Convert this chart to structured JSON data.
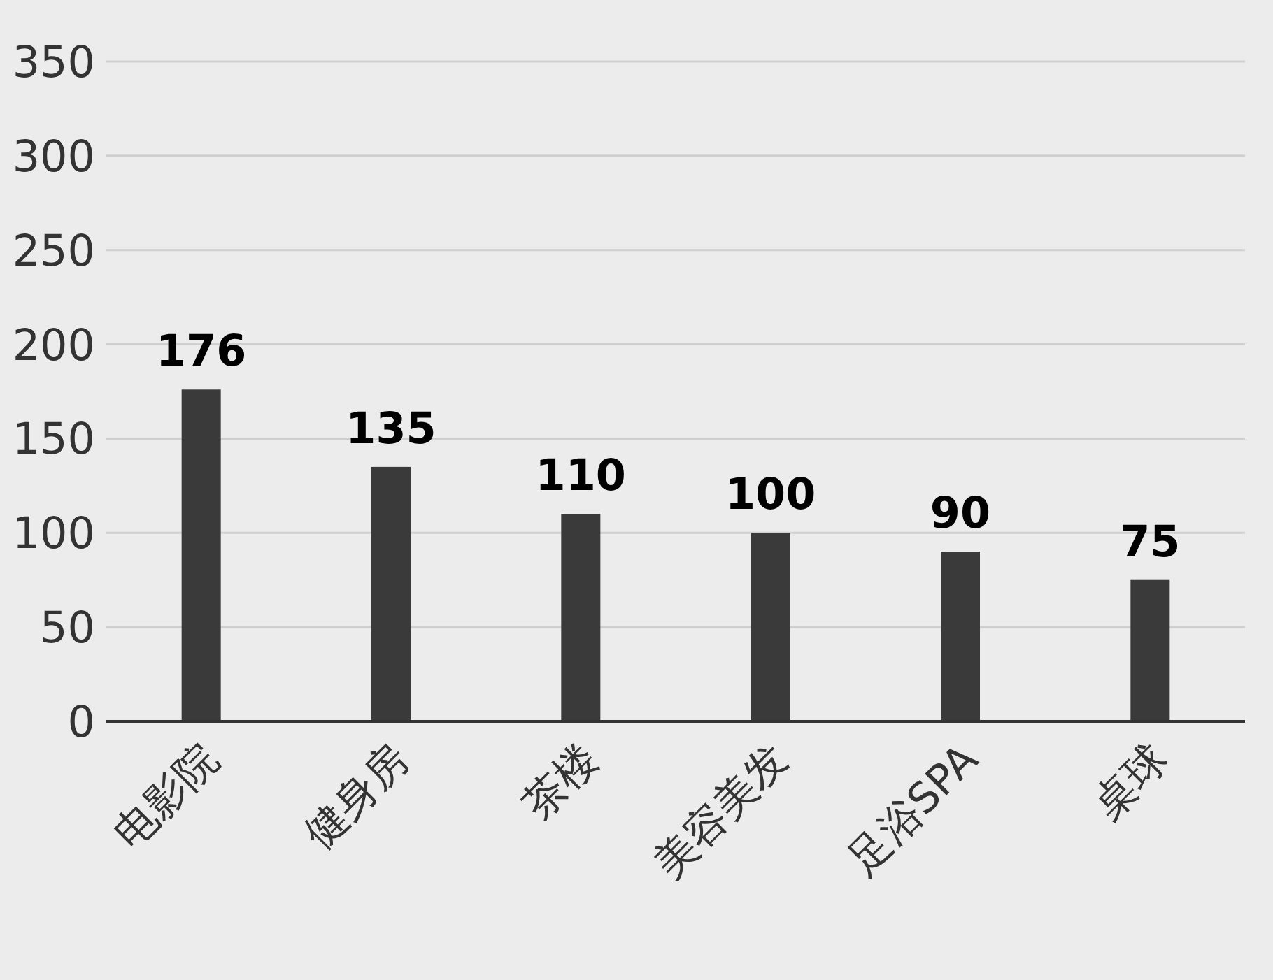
{
  "chart_data": {
    "type": "bar",
    "categories": [
      "电影院",
      "健身房",
      "茶楼",
      "美容美发",
      "足浴SPA",
      "桌球"
    ],
    "values": [
      176,
      135,
      110,
      100,
      90,
      75
    ],
    "color": "#3a3a3a",
    "ylim": [
      0,
      350
    ],
    "yticks": [
      0,
      50,
      100,
      150,
      200,
      250,
      300,
      350
    ],
    "grid": "y",
    "data_labels": true
  }
}
